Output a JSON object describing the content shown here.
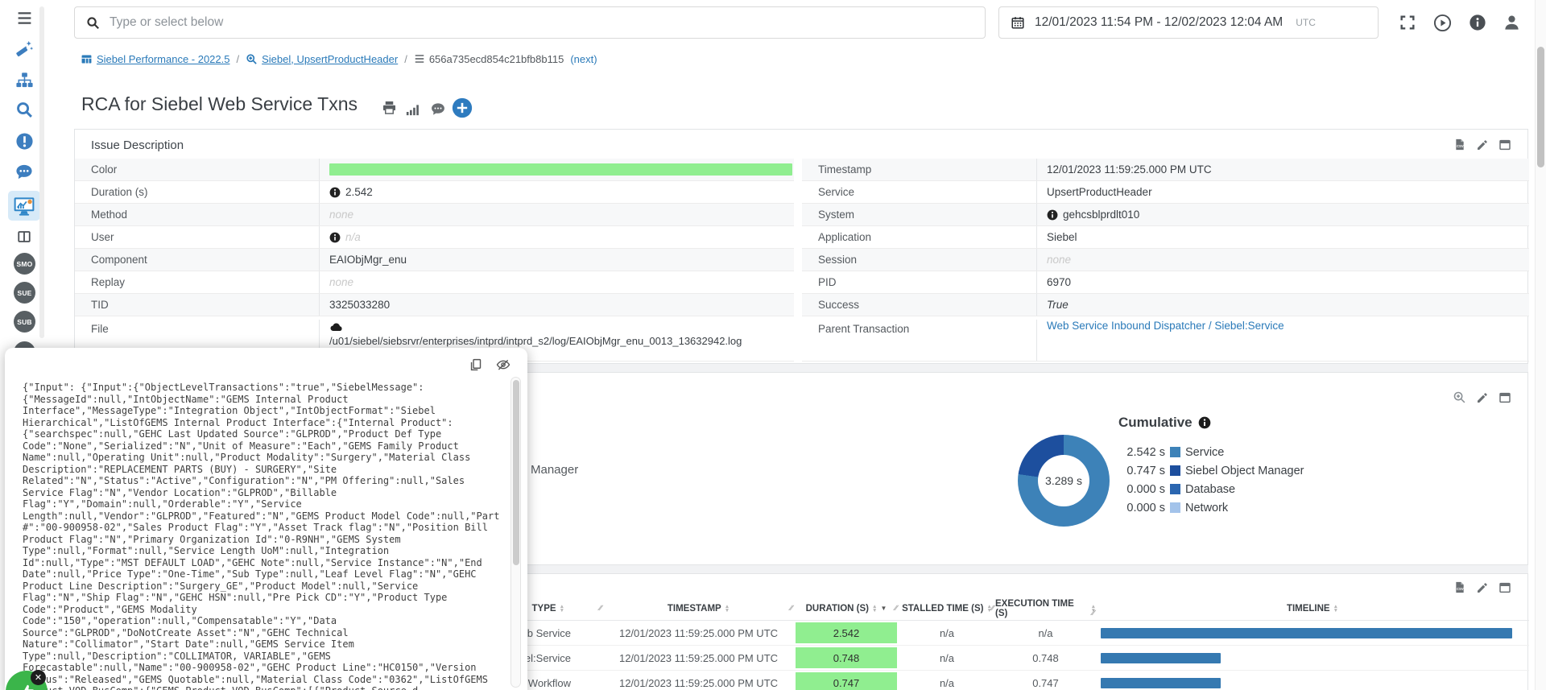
{
  "topbar": {
    "search_placeholder": "Type or select below",
    "date_range": "12/01/2023 11:54 PM - 12/02/2023 12:04 AM",
    "timezone": "UTC"
  },
  "sidebar": {
    "badges": [
      "SMO",
      "SUE",
      "SUB"
    ]
  },
  "breadcrumb": {
    "separator": "/",
    "items": [
      {
        "label": "Siebel Performance - 2022.5"
      },
      {
        "label": "Siebel, UpsertProductHeader"
      },
      {
        "label": "656a735ecd854c21bfb8b115"
      }
    ],
    "next_label": "(next)"
  },
  "page": {
    "title": "RCA for Siebel Web Service Txns"
  },
  "issue_panel": {
    "title": "Issue Description",
    "left_rows": [
      {
        "label": "Color",
        "value": ""
      },
      {
        "label": "Duration (s)",
        "value": "2.542"
      },
      {
        "label": "Method",
        "value": "none"
      },
      {
        "label": "User",
        "value": "n/a"
      },
      {
        "label": "Component",
        "value": "EAIObjMgr_enu"
      },
      {
        "label": "Replay",
        "value": "none"
      },
      {
        "label": "TID",
        "value": "3325033280"
      },
      {
        "label": "File",
        "value": "/u01/siebel/siebsrvr/enterprises/intprd/intprd_s2/log/EAIObjMgr_enu_0013_13632942.log"
      }
    ],
    "right_rows": [
      {
        "label": "Timestamp",
        "value": "12/01/2023 11:59:25.000 PM UTC"
      },
      {
        "label": "Service",
        "value": "UpsertProductHeader"
      },
      {
        "label": "System",
        "value": "gehcsblprdlt010"
      },
      {
        "label": "Application",
        "value": "Siebel"
      },
      {
        "label": "Session",
        "value": "none"
      },
      {
        "label": "PID",
        "value": "6970"
      },
      {
        "label": "Success",
        "value": "True"
      },
      {
        "label": "Parent Transaction",
        "value": "Web Service Inbound Dispatcher / Siebel:Service"
      }
    ]
  },
  "json_popup": {
    "content": "{\"Input\": {\"Input\":{\"ObjectLevelTransactions\":\"true\",\"SiebelMessage\": {\"MessageId\":null,\"IntObjectName\":\"GEMS Internal Product Interface\",\"MessageType\":\"Integration Object\",\"IntObjectFormat\":\"Siebel Hierarchical\",\"ListOfGEMS Internal Product Interface\":{\"Internal Product\": {\"searchspec\":null,\"GEHC Last Updated Source\":\"GLPROD\",\"Product Def Type Code\":\"None\",\"Serialized\":\"N\",\"Unit of Measure\":\"Each\",\"GEMS Family Product Name\":null,\"Operating Unit\":null,\"Product Modality\":\"Surgery\",\"Material Class Description\":\"REPLACEMENT PARTS (BUY) - SURGERY\",\"Site Related\":\"N\",\"Status\":\"Active\",\"Configuration\":\"N\",\"PM Offering\":null,\"Sales Service Flag\":\"N\",\"Vendor Location\":\"GLPROD\",\"Billable Flag\":\"Y\",\"Domain\":null,\"Orderable\":\"Y\",\"Service Length\":null,\"Vendor\":\"GLPROD\",\"Featured\":\"N\",\"GEMS Product Model Code\":null,\"Part #\":\"00-900958-02\",\"Sales Product Flag\":\"Y\",\"Asset Track flag\":\"N\",\"Position Bill Product Flag\":\"N\",\"Primary Organization Id\":\"0-R9NH\",\"GEMS System Type\":null,\"Format\":null,\"Service Length UoM\":null,\"Integration Id\":null,\"Type\":\"MST DEFAULT LOAD\",\"GEHC Note\":null,\"Service Instance\":\"N\",\"End Date\":null,\"Price Type\":\"One-Time\",\"Sub Type\":null,\"Leaf Level Flag\":\"N\",\"GEHC Product Line Description\":\"Surgery_GE\",\"Product Model\":null,\"Service Flag\":\"N\",\"Ship Flag\":\"N\",\"GEHC HSN\":null,\"Pre Pick CD\":\"Y\",\"Product Type Code\":\"Product\",\"GEMS Modality Code\":\"150\",\"operation\":null,\"Compensatable\":\"Y\",\"Data Source\":\"GLPROD\",\"DoNotCreate Asset\":\"N\",\"GEHC Technical Nature\":\"Collimator\",\"Start Date\":null,\"GEMS Service Item Type\":null,\"Description\":\"COLLIMATOR, VARIABLE\",\"GEMS Forecastable\":null,\"Name\":\"00-900958-02\",\"GEHC Product Line\":\"HC0150\",\"Version Status\":\"Released\",\"GEMS Quotable\":null,\"Material Class Code\":\"0362\",\"ListOfGEMS Product VOD BusComp\":{\"GEMS Product VOD BusComp\":[{\"Product Source d Product\":\"N\",\"Product Structure\""
  },
  "charts": {
    "occluded_legend_fragment": "Manager",
    "cumulative": {
      "title": "Cumulative",
      "center_label": "3.289 s",
      "total_seconds": 3.289,
      "type": "donut",
      "slices": [
        {
          "label": "Service",
          "value_label": "2.542 s",
          "seconds": 2.542,
          "color": "#3d82b8"
        },
        {
          "label": "Siebel Object Manager",
          "value_label": "0.747 s",
          "seconds": 0.747,
          "color": "#1d4f9e"
        },
        {
          "label": "Database",
          "value_label": "0.000 s",
          "seconds": 0,
          "color": "#2b66b0"
        },
        {
          "label": "Network",
          "value_label": "0.000 s",
          "seconds": 0,
          "color": "#a3c3ea"
        }
      ]
    }
  },
  "transactions": {
    "columns": [
      {
        "label": "TYPE"
      },
      {
        "label": "TIMESTAMP"
      },
      {
        "label": "DURATION (S)",
        "sorted": "desc"
      },
      {
        "label": "STALLED TIME (S)"
      },
      {
        "label": "EXECUTION TIME (S)"
      },
      {
        "label": "TIMELINE"
      }
    ],
    "rows": [
      {
        "type": "Web Service",
        "timestamp": "12/01/2023 11:59:25.000 PM UTC",
        "duration": "2.542",
        "stalled": "n/a",
        "execution": "n/a",
        "timeline_pct": 96
      },
      {
        "type": "el:Service",
        "timestamp": "12/01/2023 11:59:25.000 PM UTC",
        "duration": "0.748",
        "stalled": "n/a",
        "execution": "0.748",
        "timeline_pct": 28
      },
      {
        "type": ":Workflow",
        "timestamp": "12/01/2023 11:59:25.000 PM UTC",
        "duration": "0.747",
        "stalled": "n/a",
        "execution": "0.747",
        "timeline_pct": 28
      }
    ]
  },
  "colors": {
    "accent_blue": "#2e7bbf",
    "duration_green": "#90ee90",
    "timeline_blue": "#3579b1"
  }
}
